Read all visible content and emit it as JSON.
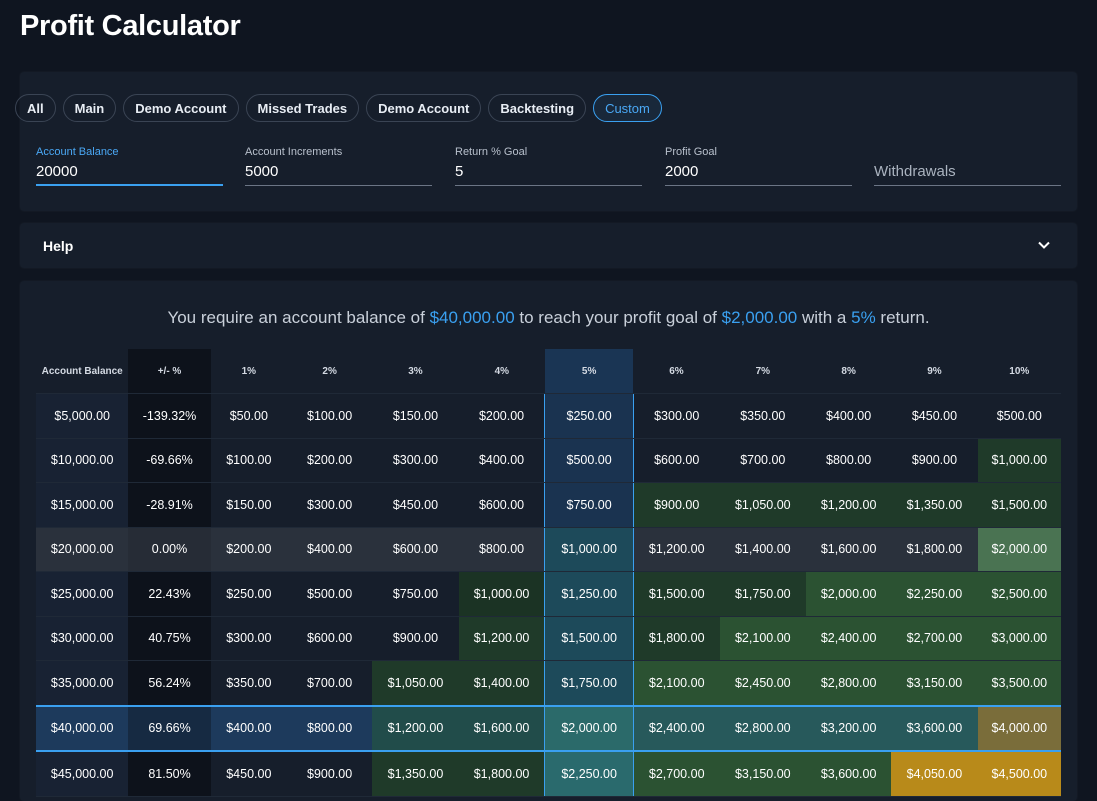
{
  "page": {
    "title": "Profit Calculator"
  },
  "chips": [
    "All",
    "Main",
    "Demo Account",
    "Missed Trades",
    "Demo Account",
    "Backtesting",
    "Custom"
  ],
  "active_chip": "Custom",
  "fields": {
    "account_balance": {
      "label": "Account Balance",
      "value": "20000"
    },
    "account_increments": {
      "label": "Account Increments",
      "value": "5000"
    },
    "return_goal": {
      "label": "Return % Goal",
      "value": "5"
    },
    "profit_goal": {
      "label": "Profit Goal",
      "value": "2000"
    },
    "withdrawals": {
      "placeholder": "Withdrawals"
    }
  },
  "help": {
    "label": "Help"
  },
  "summary": {
    "pre": "You require an account balance of ",
    "balance": "$40,000.00",
    "mid": " to reach your profit goal of ",
    "goal": "$2,000.00",
    "mid2": " with a ",
    "pct": "5%",
    "post": " return."
  },
  "table": {
    "headers": [
      "Account Balance",
      "+/- %",
      "1%",
      "2%",
      "3%",
      "4%",
      "5%",
      "6%",
      "7%",
      "8%",
      "9%",
      "10%"
    ],
    "rows": [
      [
        "$5,000.00",
        "-139.32%",
        "$50.00",
        "$100.00",
        "$150.00",
        "$200.00",
        "$250.00",
        "$300.00",
        "$350.00",
        "$400.00",
        "$450.00",
        "$500.00"
      ],
      [
        "$10,000.00",
        "-69.66%",
        "$100.00",
        "$200.00",
        "$300.00",
        "$400.00",
        "$500.00",
        "$600.00",
        "$700.00",
        "$800.00",
        "$900.00",
        "$1,000.00"
      ],
      [
        "$15,000.00",
        "-28.91%",
        "$150.00",
        "$300.00",
        "$450.00",
        "$600.00",
        "$750.00",
        "$900.00",
        "$1,050.00",
        "$1,200.00",
        "$1,350.00",
        "$1,500.00"
      ],
      [
        "$20,000.00",
        "0.00%",
        "$200.00",
        "$400.00",
        "$600.00",
        "$800.00",
        "$1,000.00",
        "$1,200.00",
        "$1,400.00",
        "$1,600.00",
        "$1,800.00",
        "$2,000.00"
      ],
      [
        "$25,000.00",
        "22.43%",
        "$250.00",
        "$500.00",
        "$750.00",
        "$1,000.00",
        "$1,250.00",
        "$1,500.00",
        "$1,750.00",
        "$2,000.00",
        "$2,250.00",
        "$2,500.00"
      ],
      [
        "$30,000.00",
        "40.75%",
        "$300.00",
        "$600.00",
        "$900.00",
        "$1,200.00",
        "$1,500.00",
        "$1,800.00",
        "$2,100.00",
        "$2,400.00",
        "$2,700.00",
        "$3,000.00"
      ],
      [
        "$35,000.00",
        "56.24%",
        "$350.00",
        "$700.00",
        "$1,050.00",
        "$1,400.00",
        "$1,750.00",
        "$2,100.00",
        "$2,450.00",
        "$2,800.00",
        "$3,150.00",
        "$3,500.00"
      ],
      [
        "$40,000.00",
        "69.66%",
        "$400.00",
        "$800.00",
        "$1,200.00",
        "$1,600.00",
        "$2,000.00",
        "$2,400.00",
        "$2,800.00",
        "$3,200.00",
        "$3,600.00",
        "$4,000.00"
      ],
      [
        "$45,000.00",
        "81.50%",
        "$450.00",
        "$900.00",
        "$1,350.00",
        "$1,800.00",
        "$2,250.00",
        "$2,700.00",
        "$3,150.00",
        "$3,600.00",
        "$4,050.00",
        "$4,500.00"
      ]
    ]
  },
  "colors": {
    "accent": "#3aa0f0",
    "background": "#0f1520",
    "card": "#161e2b",
    "profit_green": "#2e5f35",
    "goal_gold": "#b88a1a",
    "current_row": "#2a313c"
  }
}
